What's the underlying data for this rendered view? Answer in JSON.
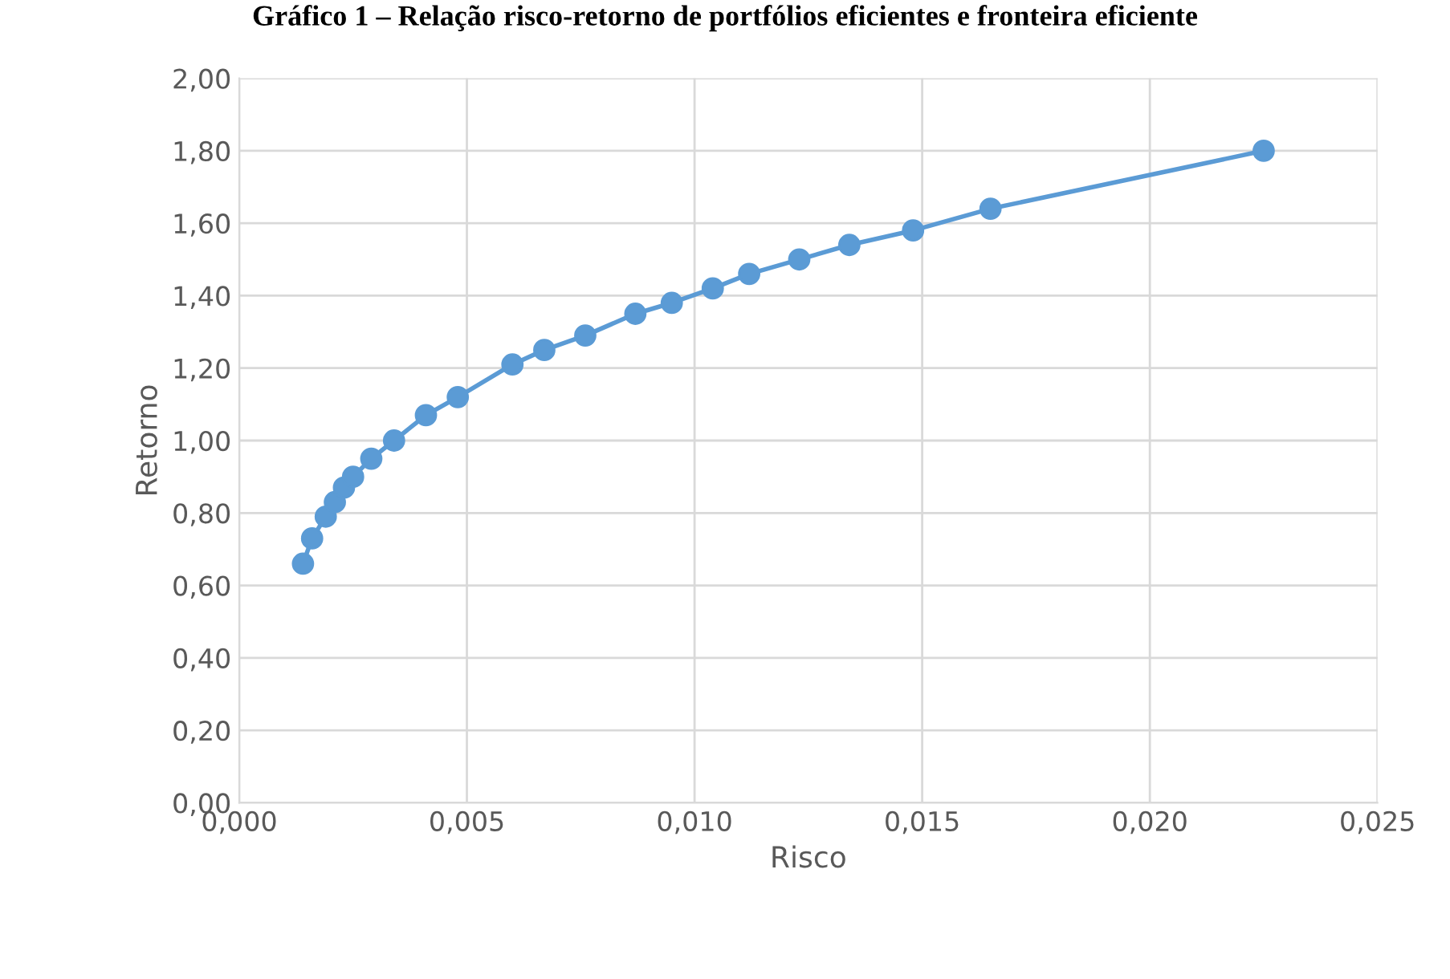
{
  "chart_data": {
    "type": "line",
    "title": "Gráfico 1 – Relação risco-retorno de portfólios eficientes e fronteira eficiente",
    "xlabel": "Risco",
    "ylabel": "Retorno",
    "series": [
      {
        "color": "#5b9bd5",
        "x": [
          0.0014,
          0.0016,
          0.0019,
          0.0021,
          0.0023,
          0.0025,
          0.0029,
          0.0034,
          0.0041,
          0.0048,
          0.006,
          0.0067,
          0.0076,
          0.0087,
          0.0095,
          0.0104,
          0.0112,
          0.0123,
          0.0134,
          0.0148,
          0.0165,
          0.0225
        ],
        "values": [
          0.66,
          0.73,
          0.79,
          0.83,
          0.87,
          0.9,
          0.95,
          1.0,
          1.07,
          1.12,
          1.21,
          1.25,
          1.29,
          1.35,
          1.38,
          1.42,
          1.46,
          1.5,
          1.54,
          1.58,
          1.64,
          1.8
        ]
      }
    ],
    "xlim": [
      0,
      0.025
    ],
    "xticks": [
      {
        "value": 0,
        "label": "0,000"
      },
      {
        "value": 0.005,
        "label": "0,005"
      },
      {
        "value": 0.01,
        "label": "0,010"
      },
      {
        "value": 0.015,
        "label": "0,015"
      },
      {
        "value": 0.02,
        "label": "0,020"
      },
      {
        "value": 0.025,
        "label": "0,025"
      }
    ],
    "ylim": [
      0,
      2
    ],
    "yticks": [
      {
        "value": 0,
        "label": "0,00"
      },
      {
        "value": 0.2,
        "label": "0,20"
      },
      {
        "value": 0.4,
        "label": "0,40"
      },
      {
        "value": 0.6,
        "label": "0,60"
      },
      {
        "value": 0.8,
        "label": "0,80"
      },
      {
        "value": 1.0,
        "label": "1,00"
      },
      {
        "value": 1.2,
        "label": "1,20"
      },
      {
        "value": 1.4,
        "label": "1,40"
      },
      {
        "value": 1.6,
        "label": "1,60"
      },
      {
        "value": 1.8,
        "label": "1,80"
      },
      {
        "value": 2.0,
        "label": "2,00"
      }
    ],
    "grid": true,
    "marker": "circle",
    "line_style": "solid",
    "legend": false
  }
}
